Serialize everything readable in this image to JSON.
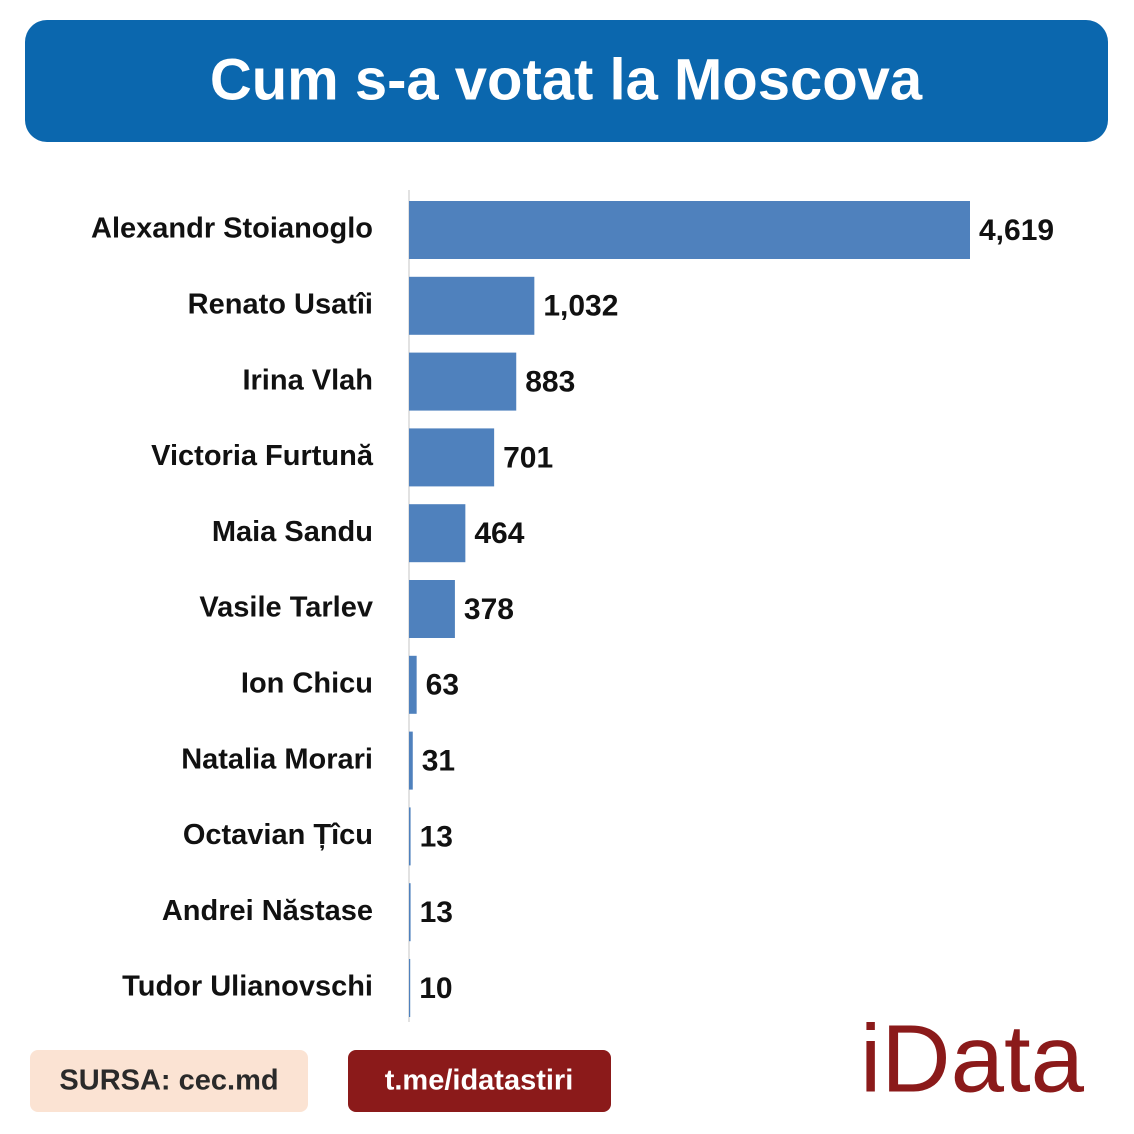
{
  "chart_data": {
    "type": "barh",
    "title": "Cum s-a votat la Moscova",
    "categories": [
      "Alexandr Stoianoglo",
      "Renato Usatîi",
      "Irina Vlah",
      "Victoria Furtună",
      "Maia Sandu",
      "Vasile Tarlev",
      "Ion Chicu",
      "Natalia Morari",
      "Octavian Țîcu",
      "Andrei Năstase",
      "Tudor Ulianovschi"
    ],
    "values": [
      4619,
      1032,
      883,
      701,
      464,
      378,
      63,
      31,
      13,
      13,
      10
    ],
    "value_labels": [
      "4,619",
      "1,032",
      "883",
      "701",
      "464",
      "378",
      "63",
      "31",
      "13",
      "13",
      "10"
    ],
    "color": "#4f81bd"
  },
  "footer": {
    "source": "SURSA: cec.md",
    "link": "t.me/idatastiri",
    "logo": "iData"
  }
}
